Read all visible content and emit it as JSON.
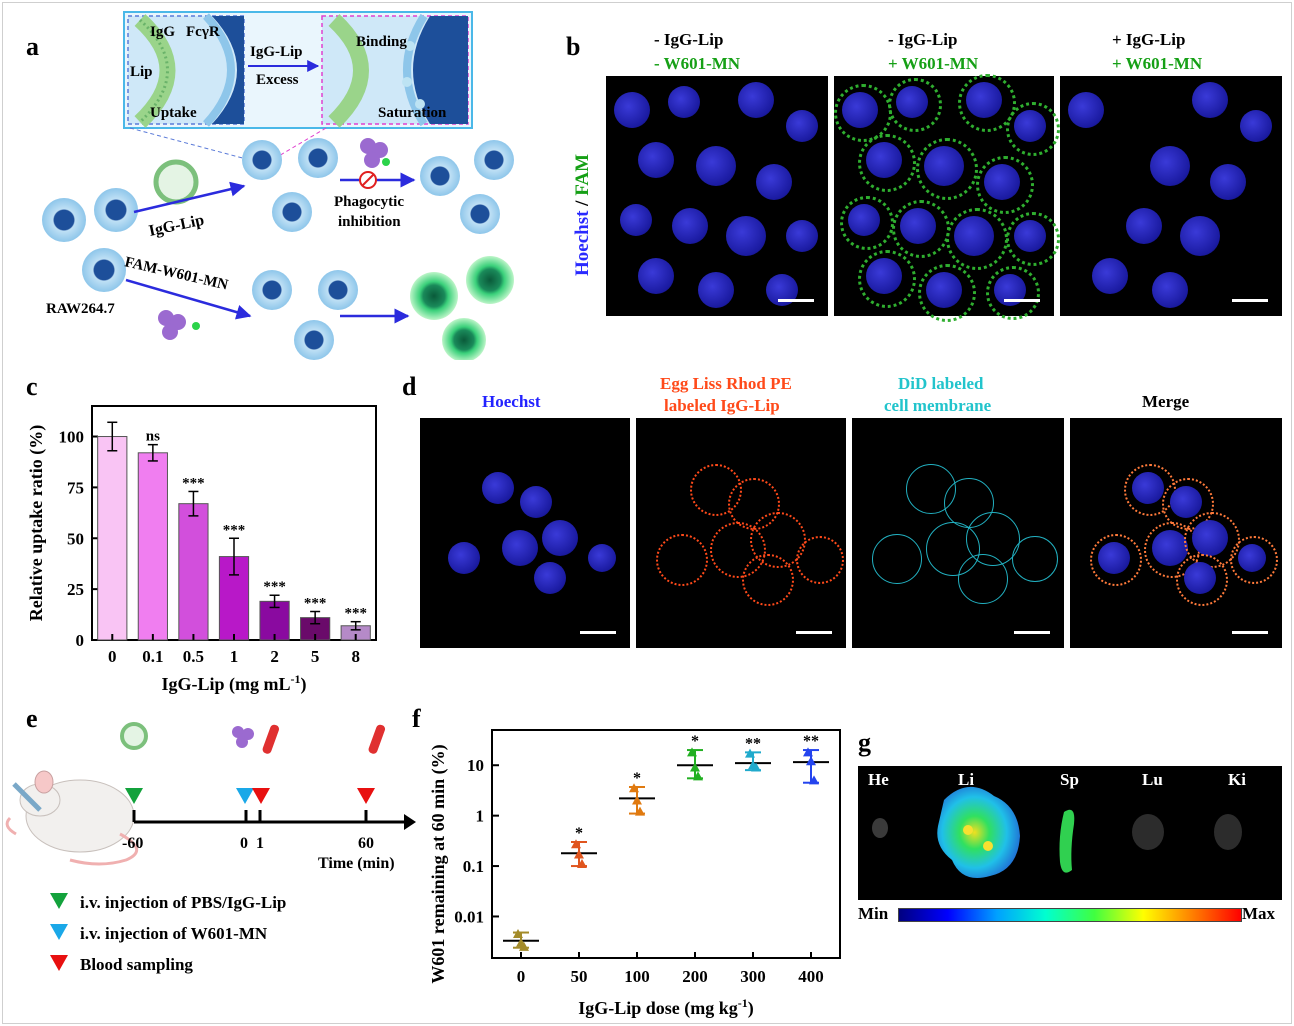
{
  "panels": {
    "a": {
      "letter": "a",
      "inset": {
        "igg": "IgG",
        "fcgr": "FcγR",
        "lip": "Lip",
        "arrow_label_1": "IgG-Lip",
        "arrow_label_2": "Excess",
        "binding": "Binding",
        "uptake": "Uptake",
        "saturation": "Saturation"
      },
      "labels": {
        "igg_lip": "IgG-Lip",
        "phagocytic": "Phagocytic",
        "inhibition": "inhibition",
        "fam_w601": "FAM-W601-MN",
        "raw": "RAW264.7"
      }
    },
    "b": {
      "letter": "b",
      "ylabel_1": "Hoechst",
      "ylabel_sep": " / ",
      "ylabel_2": "FAM",
      "cols": [
        {
          "line1": "-  IgG-Lip",
          "line2": "-  W601-MN"
        },
        {
          "line1": "- IgG-Lip",
          "line2": "+ W601-MN"
        },
        {
          "line1": "+ IgG-Lip",
          "line2": "+ W601-MN"
        }
      ]
    },
    "d": {
      "letter": "d",
      "cols": [
        {
          "line1": "Hoechst",
          "line2": "",
          "color": "#2222ff"
        },
        {
          "line1": "Egg Liss Rhod PE",
          "line2": "labeled IgG-Lip",
          "color": "#ff4a1a"
        },
        {
          "line1": "DiD labeled",
          "line2": "cell membrane",
          "color": "#22c4cc"
        },
        {
          "line1": "Merge",
          "line2": "",
          "color": "#000000"
        }
      ]
    },
    "e": {
      "letter": "e",
      "ticks": [
        "-60",
        "0",
        "1",
        "60"
      ],
      "axis_label": "Time (min)",
      "legend": [
        "i.v. injection of PBS/IgG-Lip",
        "i.v. injection of W601-MN",
        "Blood sampling"
      ]
    },
    "g": {
      "letter": "g",
      "organs": [
        "He",
        "Li",
        "Sp",
        "Lu",
        "Ki"
      ],
      "scale_min": "Min",
      "scale_max": "Max"
    }
  },
  "chart_data": [
    {
      "panel": "c",
      "type": "bar",
      "categories": [
        "0",
        "0.1",
        "0.5",
        "1",
        "2",
        "5",
        "8"
      ],
      "values": [
        100,
        92,
        67,
        41,
        19,
        11,
        7
      ],
      "errors": [
        7,
        4,
        6,
        9,
        3,
        3,
        2
      ],
      "annotations": [
        "",
        "ns",
        "***",
        "***",
        "***",
        "***",
        "***"
      ],
      "colors": [
        "#f9c4f4",
        "#f07ef0",
        "#d24fdc",
        "#b818c8",
        "#8a0aa0",
        "#6a0a6a",
        "#b58ac8"
      ],
      "ylabel": "Relative uptake ratio (%)",
      "xlabel": "IgG-Lip (mg mL",
      "xlabel_sup": "-1",
      "xlabel_end": ")",
      "ylim": [
        0,
        115
      ],
      "yticks": [
        "0",
        "25",
        "50",
        "75",
        "100"
      ]
    },
    {
      "panel": "f",
      "type": "scatter",
      "yscale": "log",
      "categories": [
        "0",
        "50",
        "100",
        "200",
        "300",
        "400"
      ],
      "means": [
        0.0033,
        0.18,
        2.2,
        10,
        11,
        11.5
      ],
      "points": [
        [
          0.0045,
          0.003,
          0.0025
        ],
        [
          0.27,
          0.17,
          0.11
        ],
        [
          3.5,
          2.0,
          1.2
        ],
        [
          18,
          9,
          6
        ],
        [
          17,
          10,
          9
        ],
        [
          18,
          12,
          5
        ]
      ],
      "upper": [
        0.0048,
        0.3,
        3.7,
        20,
        18,
        20
      ],
      "lower": [
        0.0024,
        0.1,
        1.1,
        5.5,
        8,
        4.5
      ],
      "annotations": [
        "",
        "*",
        "*",
        "*",
        "**",
        "**"
      ],
      "colors": [
        "#a38b2a",
        "#e0551e",
        "#e07a10",
        "#22b022",
        "#20aacc",
        "#2444ee"
      ],
      "ylabel": "W601 remaining at 60 min (%)",
      "xlabel": "IgG-Lip dose (mg kg",
      "xlabel_sup": "-1",
      "xlabel_end": ")",
      "yticks": [
        "0.01",
        "0.1",
        "1",
        "10"
      ],
      "ylim": [
        0.0015,
        50
      ]
    }
  ]
}
